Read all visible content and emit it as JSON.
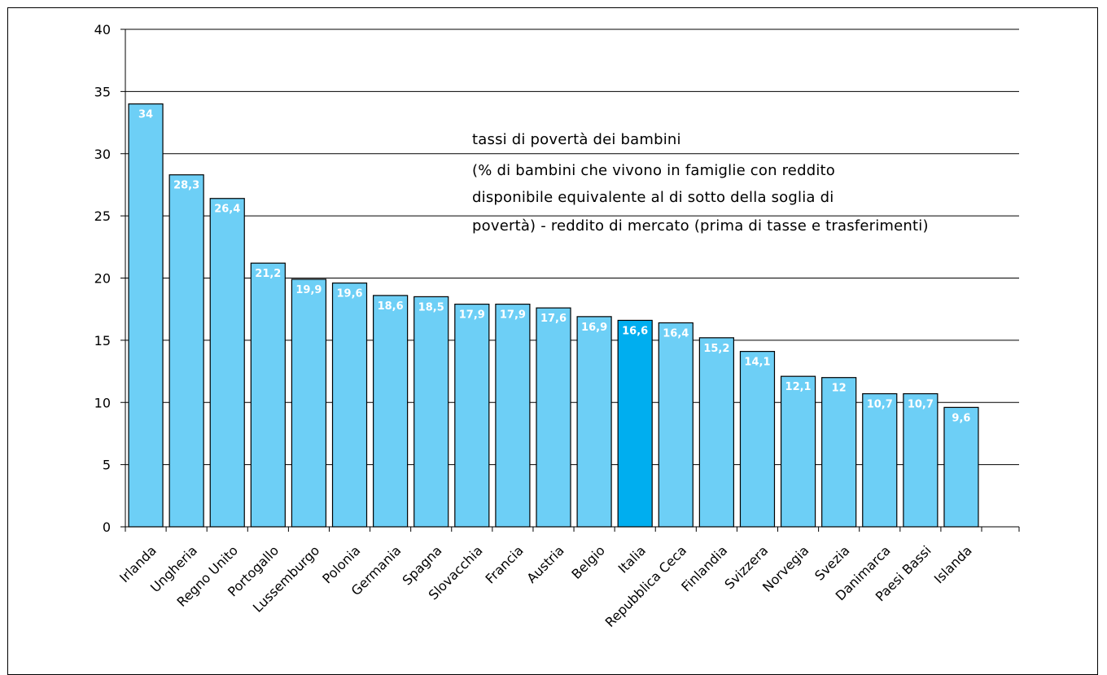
{
  "chart_data": {
    "type": "bar",
    "categories": [
      "Irlanda",
      "Ungheria",
      "Regno Unito",
      "Portogallo",
      "Lussemburgo",
      "Polonia",
      "Germania",
      "Spagna",
      "Slovacchia",
      "Francia",
      "Austria",
      "Belgio",
      "Italia",
      "Repubblica Ceca",
      "Finlandia",
      "Svizzera",
      "Norvegia",
      "Svezia",
      "Danimarca",
      "Paesi Bassi",
      "Islanda"
    ],
    "values": [
      34,
      28.3,
      26.4,
      21.2,
      19.9,
      19.6,
      18.6,
      18.5,
      17.9,
      17.9,
      17.6,
      16.9,
      16.6,
      16.4,
      15.2,
      14.1,
      12.1,
      12,
      10.7,
      10.7,
      9.6
    ],
    "data_labels": [
      "34",
      "28,3",
      "26,4",
      "21,2",
      "19,9",
      "19,6",
      "18,6",
      "18,5",
      "17,9",
      "17,9",
      "17,6",
      "16,9",
      "16,6",
      "16,4",
      "15,2",
      "14,1",
      "12,1",
      "12",
      "10,7",
      "10,7",
      "9,6"
    ],
    "ylim": [
      0,
      40
    ],
    "yticks": [
      0,
      5,
      10,
      15,
      20,
      25,
      30,
      35,
      40
    ],
    "grid": true,
    "highlight_category": "Italia",
    "colors": {
      "bar": "#6dcff6",
      "highlight": "#00aeef",
      "bar_border": "#000000",
      "grid": "#000000",
      "label": "#ffffff"
    },
    "annotation": [
      "tassi di povertà dei bambini",
      "(% di bambini che vivono in famiglie con reddito",
      "disponibile equivalente al di sotto della soglia di",
      "povertà) - reddito di mercato (prima di tasse e trasferimenti)"
    ]
  }
}
